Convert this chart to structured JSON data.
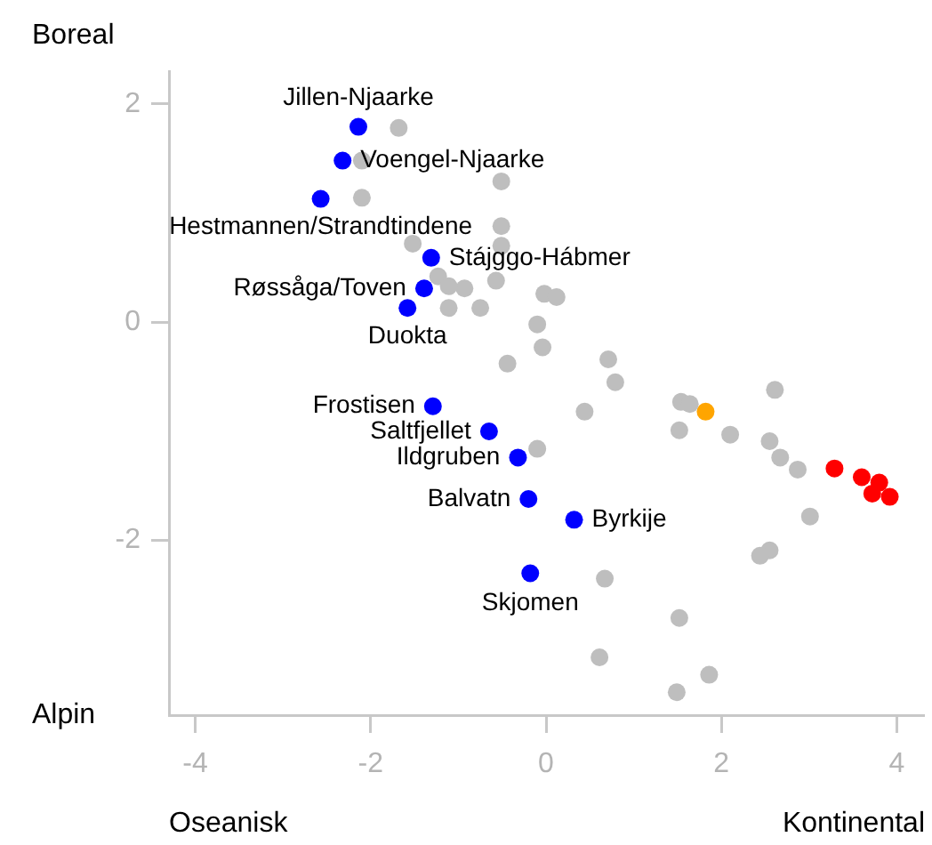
{
  "chart_data": {
    "type": "scatter",
    "xlim": [
      -4.3,
      4.3
    ],
    "ylim": [
      -3.6,
      2.3
    ],
    "xticks": [
      -4,
      -2,
      0,
      2,
      4
    ],
    "yticks": [
      -2,
      0,
      2
    ],
    "grid": false,
    "legend": false,
    "marker": "circle",
    "series": [
      {
        "color": "#bebebe",
        "x": [
          -1.68,
          -2.1,
          -0.51,
          -2.1,
          -0.51,
          -1.52,
          -0.51,
          -1.23,
          -0.93,
          -1.11,
          -0.57,
          -1.11,
          -0.75,
          -0.02,
          0.12,
          -0.1,
          -0.04,
          -0.44,
          0.71,
          0.79,
          0.44,
          -0.1,
          0.67,
          0.61,
          2.61,
          1.54,
          1.64,
          1.52,
          2.1,
          2.55,
          2.67,
          2.87,
          3.01,
          2.55,
          2.44,
          1.52,
          1.86,
          1.49
        ],
        "values": [
          1.78,
          1.48,
          1.29,
          1.14,
          0.88,
          0.72,
          0.7,
          0.42,
          0.31,
          0.33,
          0.38,
          0.13,
          0.13,
          0.26,
          0.23,
          -0.02,
          -0.23,
          -0.38,
          -0.34,
          -0.55,
          -0.82,
          -1.16,
          -2.35,
          -3.07,
          -0.62,
          -0.73,
          -0.75,
          -0.99,
          -1.03,
          -1.09,
          -1.24,
          -1.35,
          -1.78,
          -2.09,
          -2.14,
          -2.71,
          -3.23,
          -3.39
        ]
      },
      {
        "color": "#0000ff",
        "x": [
          -2.14,
          -2.32,
          -2.57,
          -1.31,
          -1.39,
          -1.58,
          -1.29,
          -0.65,
          -0.32,
          -0.2,
          0.32,
          -0.18
        ],
        "values": [
          1.79,
          1.48,
          1.13,
          0.59,
          0.31,
          0.13,
          -0.77,
          -1.0,
          -1.24,
          -1.62,
          -1.81,
          -2.3
        ]
      },
      {
        "color": "#ffa500",
        "x": [
          1.82
        ],
        "values": [
          -0.82
        ]
      },
      {
        "color": "#ff0000",
        "x": [
          3.29,
          3.6,
          3.8,
          3.72,
          3.92
        ],
        "values": [
          -1.34,
          -1.42,
          -1.47,
          -1.57,
          -1.6
        ]
      }
    ],
    "annotations": [
      {
        "text": "Jillen-Njaarke",
        "x": -2.14,
        "y": 1.79
      },
      {
        "text": "Voengel-Njaarke",
        "x": -2.32,
        "y": 1.48
      },
      {
        "text": "Hestmannen/Strandtindene",
        "x": -2.57,
        "y": 1.13
      },
      {
        "text": "Stájggo-Hábmer",
        "x": -1.31,
        "y": 0.59
      },
      {
        "text": "Røssåga/Toven",
        "x": -1.39,
        "y": 0.31
      },
      {
        "text": "Duokta",
        "x": -1.58,
        "y": 0.13
      },
      {
        "text": "Frostisen",
        "x": -1.29,
        "y": -0.77
      },
      {
        "text": "Saltfjellet",
        "x": -0.65,
        "y": -1.0
      },
      {
        "text": "Ildgruben",
        "x": -0.32,
        "y": -1.24
      },
      {
        "text": "Balvatn",
        "x": -0.2,
        "y": -1.62
      },
      {
        "text": "Byrkije",
        "x": 0.32,
        "y": -1.81
      },
      {
        "text": "Skjomen",
        "x": -0.18,
        "y": -2.3
      },
      "Boreal",
      "Alpin",
      "Oseanisk",
      "Kontinental"
    ]
  }
}
